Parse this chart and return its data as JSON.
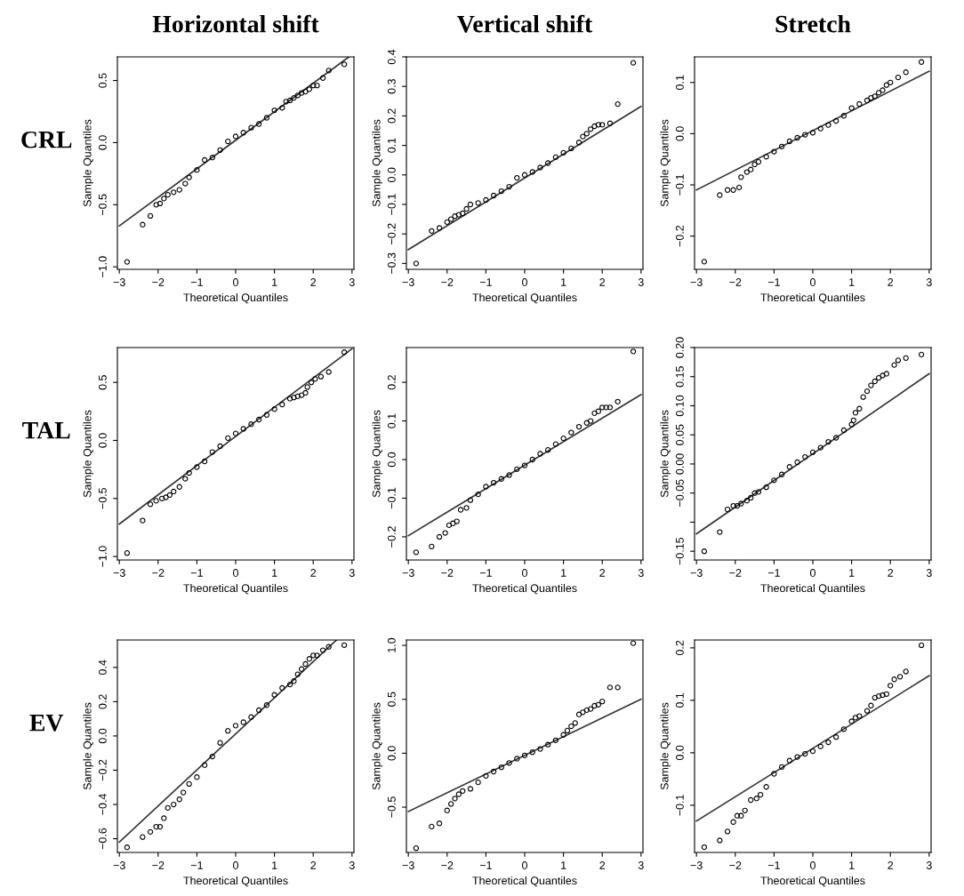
{
  "chart_data": [
    {
      "type": "scatter",
      "title": "Horizontal shift",
      "annotations": [
        "CRL"
      ],
      "xlabel": "Theoretical Quantiles",
      "ylabel": "Sample Quantiles",
      "xlim": [
        -3.05,
        3.05
      ],
      "ylim": [
        -1.02,
        0.69
      ],
      "xticks": [
        {
          "value": -3,
          "label": "−3"
        },
        {
          "value": -2,
          "label": "−2"
        },
        {
          "value": -1,
          "label": "−1"
        },
        {
          "value": 0,
          "label": "0"
        },
        {
          "value": 1,
          "label": "1"
        },
        {
          "value": 2,
          "label": "2"
        },
        {
          "value": 3,
          "label": "3"
        }
      ],
      "yticks": [
        {
          "value": -1.0,
          "label": "−1.0"
        },
        {
          "value": -0.5,
          "label": "−0.5"
        },
        {
          "value": 0.0,
          "label": "0.0"
        },
        {
          "value": 0.5,
          "label": "0.5"
        }
      ],
      "grid": false,
      "legend": false,
      "series": [
        {
          "type": "scatter",
          "marker": "circle",
          "color": "#000000",
          "x": [
            -2.8,
            -2.4,
            -2.2,
            -2.05,
            -1.95,
            -1.85,
            -1.75,
            -1.6,
            -1.45,
            -1.3,
            -1.2,
            -1.0,
            -0.8,
            -0.6,
            -0.4,
            -0.2,
            0,
            0.2,
            0.4,
            0.6,
            0.8,
            1.0,
            1.2,
            1.3,
            1.4,
            1.5,
            1.6,
            1.7,
            1.8,
            1.9,
            2.0,
            2.1,
            2.25,
            2.4,
            2.8
          ],
          "values": [
            -0.96,
            -0.66,
            -0.59,
            -0.5,
            -0.49,
            -0.45,
            -0.42,
            -0.4,
            -0.38,
            -0.33,
            -0.28,
            -0.22,
            -0.14,
            -0.12,
            -0.06,
            0.01,
            0.05,
            0.08,
            0.12,
            0.15,
            0.2,
            0.26,
            0.28,
            0.33,
            0.34,
            0.36,
            0.38,
            0.4,
            0.41,
            0.43,
            0.46,
            0.46,
            0.52,
            0.58,
            0.63
          ]
        },
        {
          "type": "line",
          "line_style": "solid",
          "color": "#333333",
          "x": [
            -3,
            2.92
          ],
          "values": [
            -0.67,
            0.69
          ]
        }
      ]
    },
    {
      "type": "scatter",
      "title": "Vertical shift",
      "xlabel": "Theoretical Quantiles",
      "ylabel": "Sample Quantiles",
      "xlim": [
        -3.05,
        3.05
      ],
      "ylim": [
        -0.32,
        0.4
      ],
      "xticks": [
        {
          "value": -3,
          "label": "−3"
        },
        {
          "value": -2,
          "label": "−2"
        },
        {
          "value": -1,
          "label": "−1"
        },
        {
          "value": 0,
          "label": "0"
        },
        {
          "value": 1,
          "label": "1"
        },
        {
          "value": 2,
          "label": "2"
        },
        {
          "value": 3,
          "label": "3"
        }
      ],
      "yticks": [
        {
          "value": -0.3,
          "label": "−0.3"
        },
        {
          "value": -0.2,
          "label": "−0.2"
        },
        {
          "value": -0.1,
          "label": "−0.1"
        },
        {
          "value": 0.0,
          "label": "0.0"
        },
        {
          "value": 0.1,
          "label": "0.1"
        },
        {
          "value": 0.2,
          "label": "0.2"
        },
        {
          "value": 0.3,
          "label": "0.3"
        },
        {
          "value": 0.4,
          "label": "0.4"
        }
      ],
      "grid": false,
      "legend": false,
      "series": [
        {
          "type": "scatter",
          "marker": "circle",
          "color": "#000000",
          "x": [
            -2.8,
            -2.4,
            -2.2,
            -2.0,
            -1.9,
            -1.8,
            -1.7,
            -1.6,
            -1.5,
            -1.4,
            -1.2,
            -1.0,
            -0.8,
            -0.6,
            -0.4,
            -0.2,
            0,
            0.2,
            0.4,
            0.6,
            0.8,
            1.0,
            1.2,
            1.4,
            1.5,
            1.6,
            1.7,
            1.8,
            1.9,
            2.0,
            2.2,
            2.4,
            2.8
          ],
          "values": [
            -0.3,
            -0.19,
            -0.18,
            -0.16,
            -0.15,
            -0.14,
            -0.135,
            -0.13,
            -0.115,
            -0.1,
            -0.095,
            -0.085,
            -0.07,
            -0.055,
            -0.04,
            -0.01,
            0.0,
            0.01,
            0.025,
            0.04,
            0.06,
            0.075,
            0.09,
            0.11,
            0.13,
            0.14,
            0.155,
            0.165,
            0.17,
            0.17,
            0.175,
            0.24,
            0.38
          ]
        },
        {
          "type": "line",
          "line_style": "solid",
          "color": "#333333",
          "x": [
            -3,
            3
          ],
          "values": [
            -0.253,
            0.232
          ]
        }
      ]
    },
    {
      "type": "scatter",
      "title": "Stretch",
      "xlabel": "Theoretical Quantiles",
      "ylabel": "Sample Quantiles",
      "xlim": [
        -3.05,
        3.05
      ],
      "ylim": [
        -0.265,
        0.15
      ],
      "xticks": [
        {
          "value": -3,
          "label": "−3"
        },
        {
          "value": -2,
          "label": "−2"
        },
        {
          "value": -1,
          "label": "−1"
        },
        {
          "value": 0,
          "label": "0"
        },
        {
          "value": 1,
          "label": "1"
        },
        {
          "value": 2,
          "label": "2"
        },
        {
          "value": 3,
          "label": "3"
        }
      ],
      "yticks": [
        {
          "value": -0.2,
          "label": "−0.2"
        },
        {
          "value": -0.1,
          "label": "−0.1"
        },
        {
          "value": 0.0,
          "label": "0.0"
        },
        {
          "value": 0.1,
          "label": "0.1"
        }
      ],
      "grid": false,
      "legend": false,
      "series": [
        {
          "type": "scatter",
          "marker": "circle",
          "color": "#000000",
          "x": [
            -2.8,
            -2.4,
            -2.2,
            -2.05,
            -1.9,
            -1.85,
            -1.7,
            -1.6,
            -1.5,
            -1.4,
            -1.2,
            -1.0,
            -0.8,
            -0.6,
            -0.4,
            -0.2,
            0,
            0.2,
            0.4,
            0.6,
            0.8,
            1.0,
            1.2,
            1.4,
            1.5,
            1.6,
            1.7,
            1.8,
            1.9,
            2.0,
            2.2,
            2.4,
            2.8
          ],
          "values": [
            -0.25,
            -0.12,
            -0.11,
            -0.11,
            -0.105,
            -0.085,
            -0.075,
            -0.07,
            -0.06,
            -0.055,
            -0.045,
            -0.035,
            -0.025,
            -0.015,
            -0.008,
            -0.002,
            0.002,
            0.01,
            0.017,
            0.025,
            0.035,
            0.05,
            0.058,
            0.065,
            0.07,
            0.073,
            0.08,
            0.085,
            0.095,
            0.1,
            0.11,
            0.12,
            0.14
          ]
        },
        {
          "type": "line",
          "line_style": "solid",
          "color": "#333333",
          "x": [
            -3,
            3
          ],
          "values": [
            -0.11,
            0.122
          ]
        }
      ]
    },
    {
      "type": "scatter",
      "annotations": [
        "TAL"
      ],
      "xlabel": "Theoretical Quantiles",
      "ylabel": "Sample Quantiles",
      "xlim": [
        -3.05,
        3.05
      ],
      "ylim": [
        -1.03,
        0.8
      ],
      "xticks": [
        {
          "value": -3,
          "label": "−3"
        },
        {
          "value": -2,
          "label": "−2"
        },
        {
          "value": -1,
          "label": "−1"
        },
        {
          "value": 0,
          "label": "0"
        },
        {
          "value": 1,
          "label": "1"
        },
        {
          "value": 2,
          "label": "2"
        },
        {
          "value": 3,
          "label": "3"
        }
      ],
      "yticks": [
        {
          "value": -1.0,
          "label": "−1.0"
        },
        {
          "value": -0.5,
          "label": "−0.5"
        },
        {
          "value": 0.0,
          "label": "0.0"
        },
        {
          "value": 0.5,
          "label": "0.5"
        }
      ],
      "grid": false,
      "legend": false,
      "series": [
        {
          "type": "scatter",
          "marker": "circle",
          "color": "#000000",
          "x": [
            -2.8,
            -2.4,
            -2.2,
            -2.05,
            -1.9,
            -1.8,
            -1.7,
            -1.6,
            -1.45,
            -1.3,
            -1.2,
            -1.0,
            -0.8,
            -0.6,
            -0.4,
            -0.2,
            0,
            0.2,
            0.4,
            0.6,
            0.8,
            1.0,
            1.2,
            1.4,
            1.5,
            1.6,
            1.7,
            1.8,
            1.85,
            1.95,
            2.05,
            2.2,
            2.4,
            2.8
          ],
          "values": [
            -0.97,
            -0.69,
            -0.55,
            -0.52,
            -0.5,
            -0.49,
            -0.47,
            -0.44,
            -0.4,
            -0.33,
            -0.28,
            -0.23,
            -0.18,
            -0.1,
            -0.05,
            0.02,
            0.06,
            0.1,
            0.14,
            0.18,
            0.22,
            0.27,
            0.31,
            0.36,
            0.37,
            0.38,
            0.39,
            0.41,
            0.46,
            0.5,
            0.53,
            0.55,
            0.59,
            0.76
          ]
        },
        {
          "type": "line",
          "line_style": "solid",
          "color": "#333333",
          "x": [
            -3,
            3
          ],
          "values": [
            -0.72,
            0.79
          ]
        }
      ]
    },
    {
      "type": "scatter",
      "xlabel": "Theoretical Quantiles",
      "ylabel": "Sample Quantiles",
      "xlim": [
        -3.05,
        3.05
      ],
      "ylim": [
        -0.26,
        0.29
      ],
      "xticks": [
        {
          "value": -3,
          "label": "−3"
        },
        {
          "value": -2,
          "label": "−2"
        },
        {
          "value": -1,
          "label": "−1"
        },
        {
          "value": 0,
          "label": "0"
        },
        {
          "value": 1,
          "label": "1"
        },
        {
          "value": 2,
          "label": "2"
        },
        {
          "value": 3,
          "label": "3"
        }
      ],
      "yticks": [
        {
          "value": -0.2,
          "label": "−0.2"
        },
        {
          "value": -0.1,
          "label": "−0.1"
        },
        {
          "value": 0.0,
          "label": "0.0"
        },
        {
          "value": 0.1,
          "label": "0.1"
        },
        {
          "value": 0.2,
          "label": "0.2"
        }
      ],
      "grid": false,
      "legend": false,
      "series": [
        {
          "type": "scatter",
          "marker": "circle",
          "color": "#000000",
          "x": [
            -2.8,
            -2.4,
            -2.2,
            -2.05,
            -1.95,
            -1.85,
            -1.75,
            -1.65,
            -1.5,
            -1.4,
            -1.2,
            -1.0,
            -0.8,
            -0.6,
            -0.4,
            -0.2,
            0,
            0.2,
            0.4,
            0.6,
            0.8,
            1.0,
            1.2,
            1.4,
            1.6,
            1.7,
            1.8,
            1.9,
            2.0,
            2.1,
            2.2,
            2.4,
            2.8
          ],
          "values": [
            -0.24,
            -0.225,
            -0.2,
            -0.19,
            -0.17,
            -0.165,
            -0.16,
            -0.13,
            -0.125,
            -0.105,
            -0.09,
            -0.07,
            -0.06,
            -0.05,
            -0.04,
            -0.025,
            -0.015,
            0.0,
            0.015,
            0.025,
            0.04,
            0.055,
            0.07,
            0.085,
            0.095,
            0.1,
            0.12,
            0.125,
            0.135,
            0.135,
            0.135,
            0.15,
            0.28
          ]
        },
        {
          "type": "line",
          "line_style": "solid",
          "color": "#333333",
          "x": [
            -3,
            3
          ],
          "values": [
            -0.197,
            0.168
          ]
        }
      ]
    },
    {
      "type": "scatter",
      "xlabel": "Theoretical Quantiles",
      "ylabel": "Sample Quantiles",
      "xlim": [
        -3.05,
        3.05
      ],
      "ylim": [
        -0.165,
        0.2
      ],
      "xticks": [
        {
          "value": -3,
          "label": "−3"
        },
        {
          "value": -2,
          "label": "−2"
        },
        {
          "value": -1,
          "label": "−1"
        },
        {
          "value": 0,
          "label": "0"
        },
        {
          "value": 1,
          "label": "1"
        },
        {
          "value": 2,
          "label": "2"
        },
        {
          "value": 3,
          "label": "3"
        }
      ],
      "yticks": [
        {
          "value": -0.15,
          "label": "−0.15"
        },
        {
          "value": -0.1,
          "label": null
        },
        {
          "value": -0.05,
          "label": "−0.05"
        },
        {
          "value": 0.0,
          "label": "0.00"
        },
        {
          "value": 0.05,
          "label": "0.05"
        },
        {
          "value": 0.1,
          "label": "0.10"
        },
        {
          "value": 0.15,
          "label": "0.15"
        },
        {
          "value": 0.2,
          "label": "0.20"
        }
      ],
      "grid": false,
      "legend": false,
      "series": [
        {
          "type": "scatter",
          "marker": "circle",
          "color": "#000000",
          "x": [
            -2.8,
            -2.4,
            -2.2,
            -2.05,
            -1.95,
            -1.85,
            -1.7,
            -1.6,
            -1.5,
            -1.4,
            -1.2,
            -1.0,
            -0.8,
            -0.6,
            -0.4,
            -0.2,
            0,
            0.2,
            0.4,
            0.6,
            0.8,
            1.0,
            1.05,
            1.1,
            1.2,
            1.3,
            1.4,
            1.5,
            1.6,
            1.7,
            1.8,
            1.9,
            2.1,
            2.2,
            2.4,
            2.8
          ],
          "values": [
            -0.15,
            -0.117,
            -0.078,
            -0.072,
            -0.072,
            -0.068,
            -0.063,
            -0.058,
            -0.05,
            -0.048,
            -0.04,
            -0.028,
            -0.018,
            -0.005,
            0.003,
            0.012,
            0.02,
            0.028,
            0.038,
            0.045,
            0.058,
            0.068,
            0.075,
            0.088,
            0.095,
            0.115,
            0.125,
            0.135,
            0.142,
            0.148,
            0.152,
            0.155,
            0.17,
            0.178,
            0.182,
            0.188
          ]
        },
        {
          "type": "line",
          "line_style": "solid",
          "color": "#333333",
          "x": [
            -3,
            3
          ],
          "values": [
            -0.12,
            0.155
          ]
        }
      ]
    },
    {
      "type": "scatter",
      "annotations": [
        "EV"
      ],
      "xlabel": "Theoretical Quantiles",
      "ylabel": "Sample Quantiles",
      "xlim": [
        -3.05,
        3.05
      ],
      "ylim": [
        -0.68,
        0.56
      ],
      "xticks": [
        {
          "value": -3,
          "label": "−3"
        },
        {
          "value": -2,
          "label": "−2"
        },
        {
          "value": -1,
          "label": "−1"
        },
        {
          "value": 0,
          "label": "0"
        },
        {
          "value": 1,
          "label": "1"
        },
        {
          "value": 2,
          "label": "2"
        },
        {
          "value": 3,
          "label": "3"
        }
      ],
      "yticks": [
        {
          "value": -0.6,
          "label": "−0.6"
        },
        {
          "value": -0.4,
          "label": "−0.4"
        },
        {
          "value": -0.2,
          "label": "−0.2"
        },
        {
          "value": 0.0,
          "label": "0.0"
        },
        {
          "value": 0.2,
          "label": "0.2"
        },
        {
          "value": 0.4,
          "label": "0.4"
        }
      ],
      "grid": false,
      "legend": false,
      "series": [
        {
          "type": "scatter",
          "marker": "circle",
          "color": "#000000",
          "x": [
            -2.8,
            -2.4,
            -2.2,
            -2.05,
            -1.95,
            -1.85,
            -1.75,
            -1.6,
            -1.45,
            -1.35,
            -1.2,
            -1.0,
            -0.8,
            -0.6,
            -0.4,
            -0.2,
            0,
            0.2,
            0.4,
            0.6,
            0.8,
            1.0,
            1.2,
            1.4,
            1.5,
            1.6,
            1.7,
            1.8,
            1.9,
            2.0,
            2.1,
            2.25,
            2.4,
            2.8
          ],
          "values": [
            -0.65,
            -0.59,
            -0.56,
            -0.53,
            -0.53,
            -0.48,
            -0.42,
            -0.4,
            -0.37,
            -0.33,
            -0.28,
            -0.24,
            -0.17,
            -0.12,
            -0.04,
            0.03,
            0.06,
            0.08,
            0.11,
            0.15,
            0.18,
            0.24,
            0.28,
            0.3,
            0.32,
            0.36,
            0.39,
            0.42,
            0.45,
            0.47,
            0.47,
            0.5,
            0.52,
            0.53
          ]
        },
        {
          "type": "line",
          "line_style": "solid",
          "color": "#333333",
          "x": [
            -3,
            2.6
          ],
          "values": [
            -0.62,
            0.56
          ]
        }
      ]
    },
    {
      "type": "scatter",
      "xlabel": "Theoretical Quantiles",
      "ylabel": "Sample Quantiles",
      "xlim": [
        -3.05,
        3.05
      ],
      "ylim": [
        -0.92,
        1.05
      ],
      "xticks": [
        {
          "value": -3,
          "label": "−3"
        },
        {
          "value": -2,
          "label": "−2"
        },
        {
          "value": -1,
          "label": "−1"
        },
        {
          "value": 0,
          "label": "0"
        },
        {
          "value": 1,
          "label": "1"
        },
        {
          "value": 2,
          "label": "2"
        },
        {
          "value": 3,
          "label": "3"
        }
      ],
      "yticks": [
        {
          "value": -0.5,
          "label": "−0.5"
        },
        {
          "value": 0.0,
          "label": "0.0"
        },
        {
          "value": 0.5,
          "label": "0.5"
        },
        {
          "value": 1.0,
          "label": "1.0"
        }
      ],
      "grid": false,
      "legend": false,
      "series": [
        {
          "type": "scatter",
          "marker": "circle",
          "color": "#000000",
          "x": [
            -2.8,
            -2.4,
            -2.2,
            -2.0,
            -1.9,
            -1.8,
            -1.7,
            -1.6,
            -1.4,
            -1.2,
            -1.0,
            -0.8,
            -0.6,
            -0.4,
            -0.2,
            0,
            0.2,
            0.4,
            0.6,
            0.8,
            1.0,
            1.1,
            1.2,
            1.3,
            1.4,
            1.5,
            1.6,
            1.7,
            1.8,
            1.9,
            2.0,
            2.2,
            2.4,
            2.8
          ],
          "values": [
            -0.88,
            -0.68,
            -0.65,
            -0.53,
            -0.47,
            -0.42,
            -0.38,
            -0.35,
            -0.33,
            -0.27,
            -0.21,
            -0.17,
            -0.13,
            -0.09,
            -0.05,
            -0.02,
            0.01,
            0.04,
            0.08,
            0.12,
            0.17,
            0.21,
            0.25,
            0.28,
            0.36,
            0.38,
            0.4,
            0.41,
            0.44,
            0.45,
            0.48,
            0.61,
            0.61,
            1.02
          ]
        },
        {
          "type": "line",
          "line_style": "solid",
          "color": "#333333",
          "x": [
            -3,
            3
          ],
          "values": [
            -0.54,
            0.5
          ]
        }
      ]
    },
    {
      "type": "scatter",
      "xlabel": "Theoretical Quantiles",
      "ylabel": "Sample Quantiles",
      "xlim": [
        -3.05,
        3.05
      ],
      "ylim": [
        -0.19,
        0.215
      ],
      "xticks": [
        {
          "value": -3,
          "label": "−3"
        },
        {
          "value": -2,
          "label": "−2"
        },
        {
          "value": -1,
          "label": "−1"
        },
        {
          "value": 0,
          "label": "0"
        },
        {
          "value": 1,
          "label": "1"
        },
        {
          "value": 2,
          "label": "2"
        },
        {
          "value": 3,
          "label": "3"
        }
      ],
      "yticks": [
        {
          "value": -0.1,
          "label": "−0.1"
        },
        {
          "value": 0.0,
          "label": "0.0"
        },
        {
          "value": 0.1,
          "label": "0.1"
        },
        {
          "value": 0.2,
          "label": "0.2"
        }
      ],
      "grid": false,
      "legend": false,
      "series": [
        {
          "type": "scatter",
          "marker": "circle",
          "color": "#000000",
          "x": [
            -2.8,
            -2.4,
            -2.2,
            -2.05,
            -1.95,
            -1.85,
            -1.75,
            -1.6,
            -1.45,
            -1.35,
            -1.2,
            -1.0,
            -0.8,
            -0.6,
            -0.4,
            -0.2,
            0,
            0.2,
            0.4,
            0.6,
            0.8,
            1.0,
            1.1,
            1.2,
            1.4,
            1.5,
            1.6,
            1.7,
            1.8,
            1.9,
            2.0,
            2.1,
            2.25,
            2.4,
            2.8
          ],
          "values": [
            -0.18,
            -0.167,
            -0.15,
            -0.132,
            -0.12,
            -0.12,
            -0.11,
            -0.09,
            -0.087,
            -0.08,
            -0.065,
            -0.04,
            -0.027,
            -0.015,
            -0.008,
            -0.002,
            0.003,
            0.012,
            0.02,
            0.03,
            0.045,
            0.06,
            0.067,
            0.07,
            0.08,
            0.09,
            0.105,
            0.108,
            0.11,
            0.112,
            0.128,
            0.14,
            0.145,
            0.155,
            0.205
          ]
        },
        {
          "type": "line",
          "line_style": "solid",
          "color": "#333333",
          "x": [
            -3,
            3
          ],
          "values": [
            -0.13,
            0.147
          ]
        }
      ]
    }
  ]
}
